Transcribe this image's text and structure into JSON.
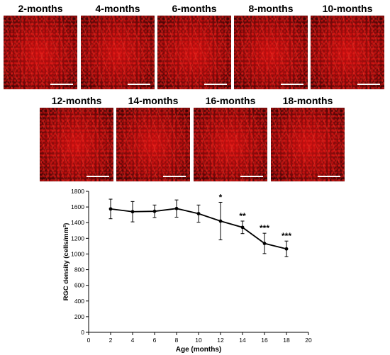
{
  "panels": [
    {
      "label": "2-months"
    },
    {
      "label": "4-months"
    },
    {
      "label": "6-months"
    },
    {
      "label": "8-months"
    },
    {
      "label": "10-months"
    },
    {
      "label": "12-months"
    },
    {
      "label": "14-months"
    },
    {
      "label": "16-months"
    },
    {
      "label": "18-months"
    }
  ],
  "chart_data": {
    "type": "line",
    "xlabel": "Age (months)",
    "ylabel": "RGC density (cells/mm²)",
    "xlim": [
      0,
      20
    ],
    "ylim": [
      0,
      1800
    ],
    "xticks": [
      0,
      2,
      4,
      6,
      8,
      10,
      12,
      14,
      16,
      18,
      20
    ],
    "yticks": [
      0,
      200,
      400,
      600,
      800,
      1000,
      1200,
      1400,
      1600,
      1800
    ],
    "grid": false,
    "series": [
      {
        "x": [
          2,
          4,
          6,
          8,
          10,
          12,
          14,
          16,
          18
        ],
        "y": [
          1575,
          1540,
          1545,
          1580,
          1515,
          1420,
          1340,
          1135,
          1065
        ],
        "err": [
          125,
          130,
          80,
          110,
          110,
          240,
          80,
          130,
          100
        ],
        "significance": [
          "",
          "",
          "",
          "",
          "",
          "*",
          "**",
          "***",
          "***"
        ]
      }
    ]
  }
}
